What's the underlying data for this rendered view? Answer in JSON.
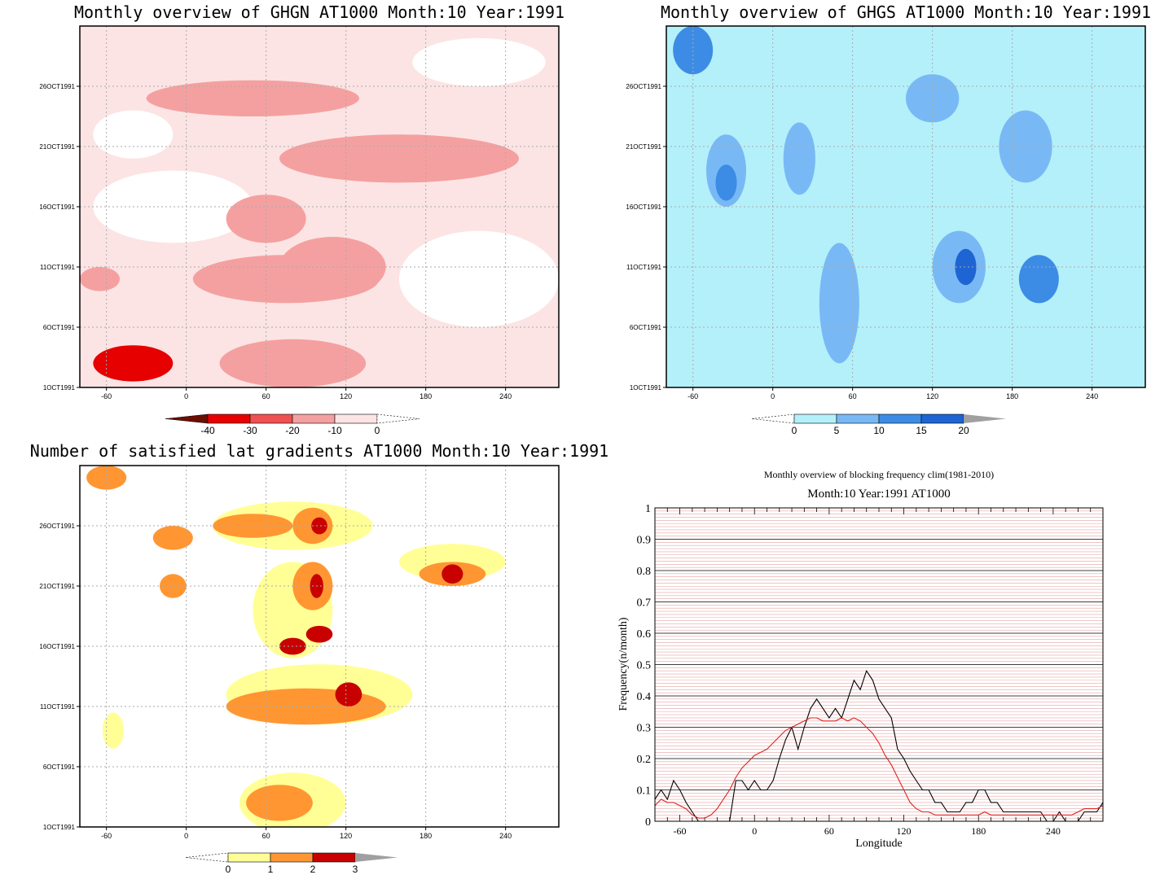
{
  "chart_data": [
    {
      "type": "heatmap",
      "title": "Monthly overview of GHGN AT1000 Month:10 Year:1991",
      "x_ticks": [
        -60,
        0,
        60,
        120,
        180,
        240
      ],
      "y_ticks": [
        "1OCT1991",
        "6OCT1991",
        "11OCT1991",
        "16OCT1991",
        "21OCT1991",
        "26OCT1991"
      ],
      "xlim": [
        -80,
        280
      ],
      "colorbar": {
        "labels": [
          "-40",
          "-30",
          "-20",
          "-10",
          "0"
        ],
        "colors": [
          "#6b0e00",
          "#e60000",
          "#f05050",
          "#f5a0a0",
          "#fce4e4",
          "#ffffff"
        ]
      },
      "blobs": [
        {
          "lon": -40,
          "day": 3,
          "rlon": 30,
          "rday": 1.5,
          "level": 1
        },
        {
          "lon": 80,
          "day": 3,
          "rlon": 55,
          "rday": 2,
          "level": 3
        },
        {
          "lon": 75,
          "day": 10,
          "rlon": 70,
          "rday": 2,
          "level": 3
        },
        {
          "lon": 110,
          "day": 11,
          "rlon": 40,
          "rday": 2.5,
          "level": 3
        },
        {
          "lon": 60,
          "day": 15,
          "rlon": 30,
          "rday": 2,
          "level": 3
        },
        {
          "lon": 160,
          "day": 20,
          "rlon": 90,
          "rday": 2,
          "level": 3
        },
        {
          "lon": 50,
          "day": 25,
          "rlon": 80,
          "rday": 1.5,
          "level": 3
        },
        {
          "lon": -65,
          "day": 10,
          "rlon": 15,
          "rday": 1,
          "level": 3
        },
        {
          "lon": -10,
          "day": 16,
          "rlon": 60,
          "rday": 3,
          "level": 0
        },
        {
          "lon": 220,
          "day": 10,
          "rlon": 60,
          "rday": 4,
          "level": 0
        },
        {
          "lon": 220,
          "day": 28,
          "rlon": 50,
          "rday": 2,
          "level": 0
        },
        {
          "lon": -40,
          "day": 22,
          "rlon": 30,
          "rday": 2,
          "level": 0
        }
      ]
    },
    {
      "type": "heatmap",
      "title": "Monthly overview of GHGS AT1000 Month:10 Year:1991",
      "x_ticks": [
        -60,
        0,
        60,
        120,
        180,
        240
      ],
      "y_ticks": [
        "1OCT1991",
        "6OCT1991",
        "11OCT1991",
        "16OCT1991",
        "21OCT1991",
        "26OCT1991"
      ],
      "xlim": [
        -80,
        280
      ],
      "colorbar": {
        "labels": [
          "0",
          "5",
          "10",
          "15",
          "20"
        ],
        "colors": [
          "#ffffff",
          "#b4f0fa",
          "#78b9f5",
          "#3c8ce6",
          "#1e64d2",
          "#a0a0a0"
        ]
      },
      "blobs": [
        {
          "lon": 50,
          "day": 8,
          "rlon": 15,
          "rday": 5,
          "level": 2
        },
        {
          "lon": 20,
          "day": 20,
          "rlon": 12,
          "rday": 3,
          "level": 2
        },
        {
          "lon": -35,
          "day": 19,
          "rlon": 15,
          "rday": 3,
          "level": 2
        },
        {
          "lon": -35,
          "day": 18,
          "rlon": 8,
          "rday": 1.5,
          "level": 3
        },
        {
          "lon": 140,
          "day": 11,
          "rlon": 20,
          "rday": 3,
          "level": 2
        },
        {
          "lon": 145,
          "day": 11,
          "rlon": 8,
          "rday": 1.5,
          "level": 4
        },
        {
          "lon": 200,
          "day": 10,
          "rlon": 15,
          "rday": 2,
          "level": 3
        },
        {
          "lon": 190,
          "day": 21,
          "rlon": 20,
          "rday": 3,
          "level": 2
        },
        {
          "lon": -60,
          "day": 29,
          "rlon": 15,
          "rday": 2,
          "level": 3
        },
        {
          "lon": 120,
          "day": 25,
          "rlon": 20,
          "rday": 2,
          "level": 2
        },
        {
          "lon": 30,
          "day": 17,
          "rlon": 160,
          "rday": 10,
          "level": 1
        },
        {
          "lon": 200,
          "day": 14,
          "rlon": 80,
          "rday": 12,
          "level": 1
        }
      ]
    },
    {
      "type": "heatmap",
      "title": "Number of satisfied lat gradients AT1000 Month:10 Year:1991",
      "x_ticks": [
        -60,
        0,
        60,
        120,
        180,
        240
      ],
      "y_ticks": [
        "1OCT1991",
        "6OCT1991",
        "11OCT1991",
        "16OCT1991",
        "21OCT1991",
        "26OCT1991"
      ],
      "xlim": [
        -80,
        280
      ],
      "colorbar": {
        "labels": [
          "0",
          "1",
          "2",
          "3"
        ],
        "colors": [
          "#ffffff",
          "#ffff96",
          "#ff9632",
          "#c80000",
          "#a0a0a0"
        ]
      },
      "blobs": [
        {
          "lon": 80,
          "day": 3,
          "rlon": 40,
          "rday": 2.5,
          "level": 1
        },
        {
          "lon": 70,
          "day": 3,
          "rlon": 25,
          "rday": 1.5,
          "level": 2
        },
        {
          "lon": 100,
          "day": 12,
          "rlon": 70,
          "rday": 2.5,
          "level": 1
        },
        {
          "lon": 90,
          "day": 11,
          "rlon": 60,
          "rday": 1.5,
          "level": 2
        },
        {
          "lon": 122,
          "day": 12,
          "rlon": 10,
          "rday": 1,
          "level": 3
        },
        {
          "lon": 80,
          "day": 19,
          "rlon": 30,
          "rday": 4,
          "level": 1
        },
        {
          "lon": 95,
          "day": 21,
          "rlon": 15,
          "rday": 2,
          "level": 2
        },
        {
          "lon": 98,
          "day": 21,
          "rlon": 5,
          "rday": 1,
          "level": 3
        },
        {
          "lon": 80,
          "day": 16,
          "rlon": 10,
          "rday": 0.7,
          "level": 3
        },
        {
          "lon": 100,
          "day": 17,
          "rlon": 10,
          "rday": 0.7,
          "level": 3
        },
        {
          "lon": 80,
          "day": 26,
          "rlon": 60,
          "rday": 2,
          "level": 1
        },
        {
          "lon": 95,
          "day": 26,
          "rlon": 15,
          "rday": 1.5,
          "level": 2
        },
        {
          "lon": 100,
          "day": 26,
          "rlon": 6,
          "rday": 0.7,
          "level": 3
        },
        {
          "lon": 200,
          "day": 23,
          "rlon": 40,
          "rday": 1.5,
          "level": 1
        },
        {
          "lon": 200,
          "day": 22,
          "rlon": 25,
          "rday": 1,
          "level": 2
        },
        {
          "lon": 200,
          "day": 22,
          "rlon": 8,
          "rday": 0.8,
          "level": 3
        },
        {
          "lon": -10,
          "day": 21,
          "rlon": 10,
          "rday": 1,
          "level": 2
        },
        {
          "lon": -10,
          "day": 25,
          "rlon": 15,
          "rday": 1,
          "level": 2
        },
        {
          "lon": 50,
          "day": 26,
          "rlon": 30,
          "rday": 1,
          "level": 2
        },
        {
          "lon": -60,
          "day": 30,
          "rlon": 15,
          "rday": 1,
          "level": 2
        },
        {
          "lon": -55,
          "day": 9,
          "rlon": 8,
          "rday": 1.5,
          "level": 1
        }
      ]
    },
    {
      "type": "line",
      "title": "Monthly overview of blocking frequency clim(1981-2010)",
      "subtitle": "Month:10 Year:1991  AT1000",
      "xlabel": "Longitude",
      "ylabel": "Frequency(n/month)",
      "xlim": [
        -80,
        280
      ],
      "ylim": [
        0,
        1
      ],
      "x_ticks": [
        -60,
        0,
        60,
        120,
        180,
        240
      ],
      "y_ticks": [
        0,
        0.1,
        0.2,
        0.3,
        0.4,
        0.5,
        0.6,
        0.7,
        0.8,
        0.9,
        1
      ],
      "series": [
        {
          "color": "#000000",
          "x": [
            -80,
            -75,
            -70,
            -65,
            -60,
            -55,
            -50,
            -45,
            -40,
            -35,
            -30,
            -25,
            -20,
            -15,
            -10,
            -5,
            0,
            5,
            10,
            15,
            20,
            25,
            30,
            35,
            40,
            45,
            50,
            55,
            60,
            65,
            70,
            75,
            80,
            85,
            90,
            95,
            100,
            105,
            110,
            115,
            120,
            125,
            130,
            135,
            140,
            145,
            150,
            155,
            160,
            165,
            170,
            175,
            180,
            185,
            190,
            195,
            200,
            205,
            210,
            215,
            220,
            225,
            230,
            235,
            240,
            245,
            250,
            255,
            260,
            265,
            270,
            275,
            280
          ],
          "y": [
            0.07,
            0.1,
            0.07,
            0.13,
            0.1,
            0.06,
            0.03,
            0.0,
            0.0,
            0.0,
            0.0,
            0.0,
            0.0,
            0.13,
            0.13,
            0.1,
            0.13,
            0.1,
            0.1,
            0.13,
            0.2,
            0.26,
            0.3,
            0.23,
            0.3,
            0.36,
            0.39,
            0.36,
            0.33,
            0.36,
            0.33,
            0.39,
            0.45,
            0.42,
            0.48,
            0.45,
            0.39,
            0.36,
            0.33,
            0.23,
            0.2,
            0.16,
            0.13,
            0.1,
            0.1,
            0.06,
            0.06,
            0.03,
            0.03,
            0.03,
            0.06,
            0.06,
            0.1,
            0.1,
            0.06,
            0.06,
            0.03,
            0.03,
            0.03,
            0.03,
            0.03,
            0.03,
            0.03,
            0.0,
            0.0,
            0.03,
            0.0,
            0.0,
            0.0,
            0.03,
            0.03,
            0.03,
            0.06
          ]
        },
        {
          "color": "#e02020",
          "x": [
            -80,
            -75,
            -70,
            -65,
            -60,
            -55,
            -50,
            -45,
            -40,
            -35,
            -30,
            -25,
            -20,
            -15,
            -10,
            -5,
            0,
            5,
            10,
            15,
            20,
            25,
            30,
            35,
            40,
            45,
            50,
            55,
            60,
            65,
            70,
            75,
            80,
            85,
            90,
            95,
            100,
            105,
            110,
            115,
            120,
            125,
            130,
            135,
            140,
            145,
            150,
            155,
            160,
            165,
            170,
            175,
            180,
            185,
            190,
            195,
            200,
            205,
            210,
            215,
            220,
            225,
            230,
            235,
            240,
            245,
            250,
            255,
            260,
            265,
            270,
            275,
            280
          ],
          "y": [
            0.05,
            0.07,
            0.06,
            0.06,
            0.05,
            0.04,
            0.02,
            0.01,
            0.01,
            0.02,
            0.04,
            0.07,
            0.1,
            0.14,
            0.17,
            0.19,
            0.21,
            0.22,
            0.23,
            0.25,
            0.27,
            0.29,
            0.3,
            0.31,
            0.32,
            0.33,
            0.33,
            0.32,
            0.32,
            0.32,
            0.33,
            0.32,
            0.33,
            0.32,
            0.3,
            0.28,
            0.25,
            0.21,
            0.18,
            0.14,
            0.1,
            0.06,
            0.04,
            0.03,
            0.03,
            0.02,
            0.02,
            0.02,
            0.02,
            0.02,
            0.02,
            0.02,
            0.02,
            0.03,
            0.02,
            0.02,
            0.02,
            0.02,
            0.02,
            0.02,
            0.02,
            0.02,
            0.02,
            0.02,
            0.02,
            0.02,
            0.02,
            0.02,
            0.03,
            0.04,
            0.04,
            0.04,
            0.05
          ]
        }
      ]
    }
  ]
}
